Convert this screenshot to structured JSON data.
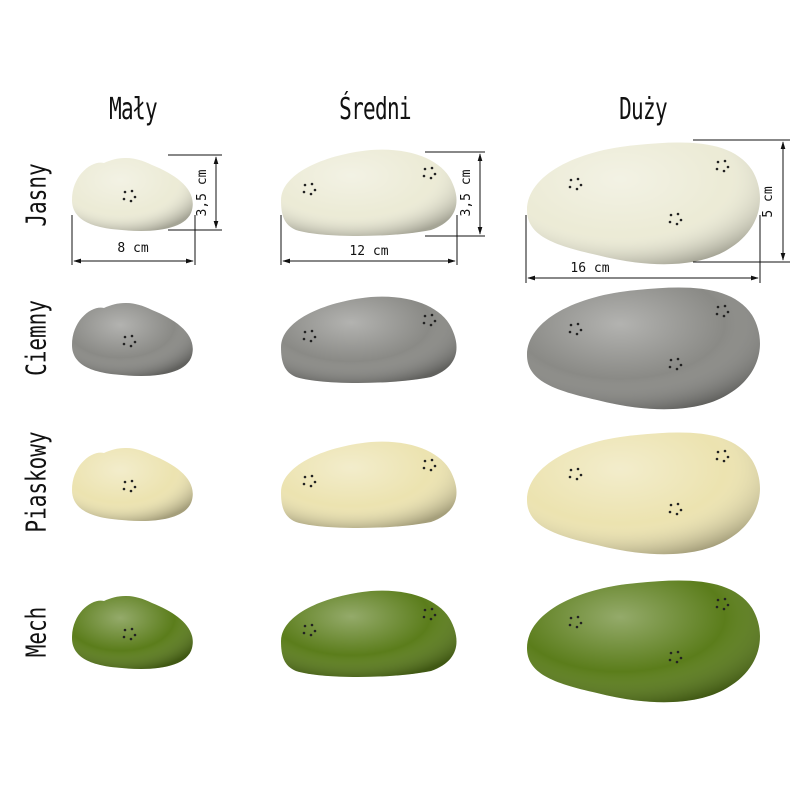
{
  "columns": [
    {
      "label": "Mały"
    },
    {
      "label": "Średni"
    },
    {
      "label": "Duży"
    }
  ],
  "rows": [
    {
      "label": "Jasny",
      "color": "#ecebd6"
    },
    {
      "label": "Ciemny",
      "color": "#8a8a86"
    },
    {
      "label": "Piaskowy",
      "color": "#ece3b0"
    },
    {
      "label": "Mech",
      "color": "#5b7d1b"
    }
  ],
  "dimensions": {
    "small": {
      "width": "8 cm",
      "height": "3,5 cm"
    },
    "medium": {
      "width": "12 cm",
      "height": "3,5 cm"
    },
    "large": {
      "width": "16 cm",
      "height": "5 cm"
    }
  }
}
